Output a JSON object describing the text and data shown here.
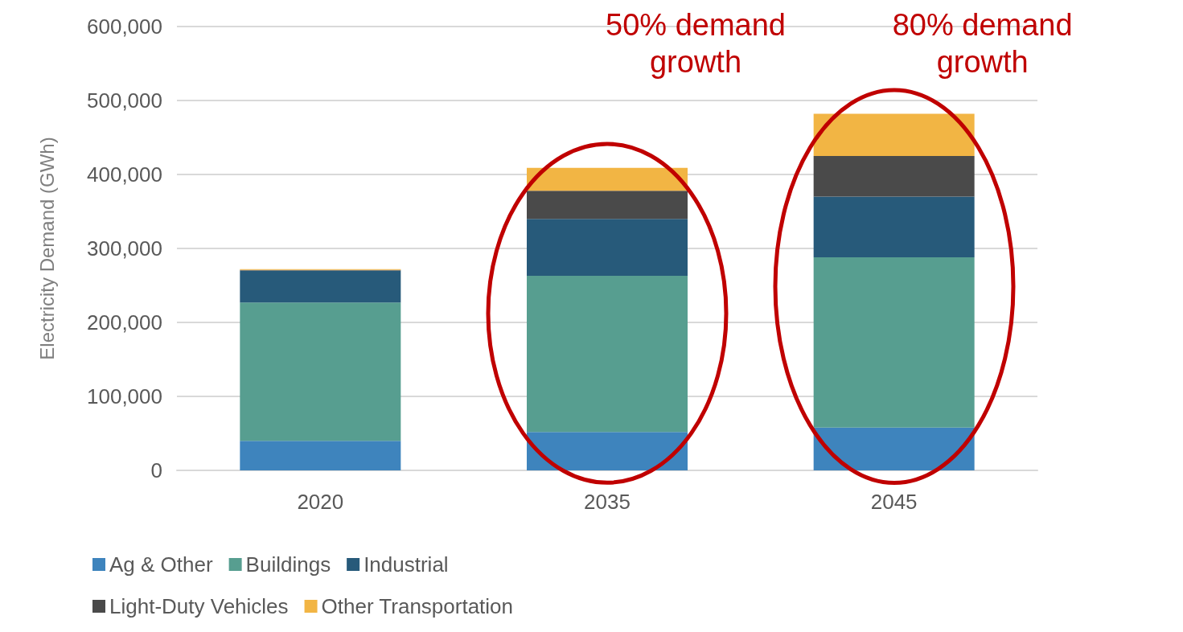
{
  "chart_data": {
    "type": "bar",
    "stacked": true,
    "ylabel": "Electricity Demand (GWh)",
    "categories": [
      "2020",
      "2035",
      "2045"
    ],
    "series": [
      {
        "name": "Ag & Other",
        "color": "#3e84bd",
        "values": [
          40000,
          52000,
          58000
        ]
      },
      {
        "name": "Buildings",
        "color": "#579e90",
        "values": [
          187000,
          211000,
          230000
        ]
      },
      {
        "name": "Industrial",
        "color": "#275a7a",
        "values": [
          43000,
          77000,
          82000
        ]
      },
      {
        "name": "Light-Duty Vehicles",
        "color": "#4a4a4a",
        "values": [
          1000,
          38000,
          55000
        ]
      },
      {
        "name": "Other Transportation",
        "color": "#f2b544",
        "values": [
          1000,
          31000,
          57000
        ]
      }
    ],
    "ylim": [
      0,
      600000
    ],
    "yticks": [
      0,
      {
        "value": 100000,
        "label": "100,000"
      },
      {
        "value": 200000,
        "label": "200,000"
      },
      {
        "value": 300000,
        "label": "300,000"
      },
      {
        "value": 400000,
        "label": "400,000"
      },
      {
        "value": 500000,
        "label": "500,000"
      },
      {
        "value": 600000,
        "label": "600,000"
      }
    ],
    "grid": "y",
    "legend": "bottom left",
    "annotations": [
      "50% demand growth",
      "80% demand growth"
    ]
  }
}
